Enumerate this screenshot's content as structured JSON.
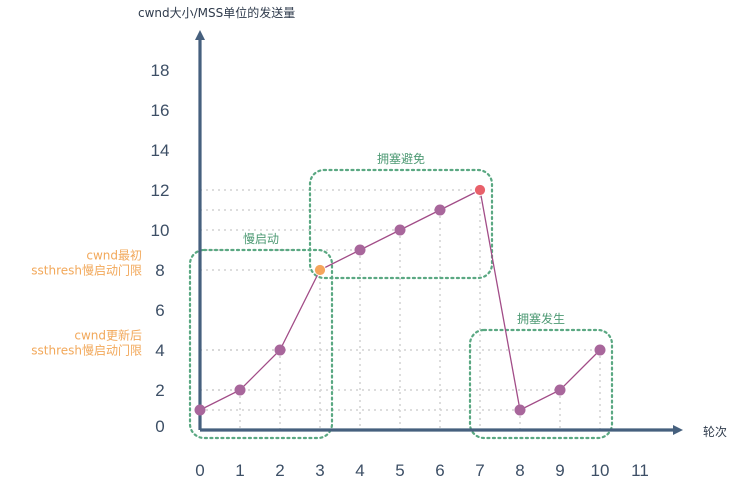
{
  "chart_data": {
    "type": "line",
    "xlabel": "轮次",
    "ylabel": "cwnd大小/MSS单位的发送量",
    "x_ticks": [
      "0",
      "1",
      "2",
      "3",
      "4",
      "5",
      "6",
      "7",
      "8",
      "9",
      "10",
      "11"
    ],
    "y_ticks": [
      "0",
      "2",
      "4",
      "6",
      "8",
      "10",
      "12",
      "14",
      "16",
      "18"
    ],
    "xlim": [
      0,
      11
    ],
    "ylim": [
      0,
      18
    ],
    "grid": "dotted guides to points",
    "series": [
      {
        "points": [
          {
            "x": 0,
            "y": 1
          },
          {
            "x": 1,
            "y": 2
          },
          {
            "x": 2,
            "y": 4
          },
          {
            "x": 3,
            "y": 8
          },
          {
            "x": 4,
            "y": 9
          },
          {
            "x": 5,
            "y": 10
          },
          {
            "x": 6,
            "y": 11
          },
          {
            "x": 7,
            "y": 12
          },
          {
            "x": 8,
            "y": 1
          },
          {
            "x": 9,
            "y": 2
          },
          {
            "x": 10,
            "y": 4
          }
        ]
      }
    ],
    "highlighted_points": [
      {
        "x": 3,
        "y": 8,
        "color": "#f5a55c"
      },
      {
        "x": 7,
        "y": 12,
        "color": "#e8606a"
      }
    ],
    "regions": [
      {
        "label": "慢启动",
        "x_from": 0,
        "x_to": 3,
        "y_from": 0,
        "y_to": 8
      },
      {
        "label": "拥塞避免",
        "x_from": 3,
        "x_to": 7,
        "y_from": 8,
        "y_to": 12
      },
      {
        "label": "拥塞发生",
        "x_from": 7,
        "x_to": 10,
        "y_from": 0,
        "y_to": 4
      }
    ],
    "annotations": [
      {
        "lines": [
          "cwnd最初",
          "ssthresh慢启动门限"
        ],
        "y": 8
      },
      {
        "lines": [
          "cwnd更新后",
          "ssthresh慢启动门限"
        ],
        "y": 4
      }
    ],
    "colors": {
      "axis": "#46607e",
      "line": "#a24d88",
      "point": "#a8669b",
      "region_border": "#5aa882",
      "guide": "#d2d2d2",
      "annotation": "#f2a85a"
    }
  }
}
